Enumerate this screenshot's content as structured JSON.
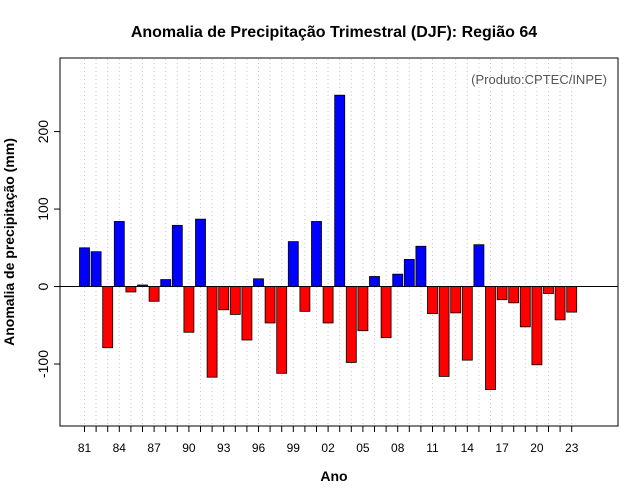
{
  "chart_data": {
    "type": "bar",
    "title": "Anomalia de Precipitação Trimestral (DJF): Região 64",
    "credit": "(Produto:CPTEC/INPE)",
    "xlabel": "Ano",
    "ylabel": "Anomalia de precipitação (mm)",
    "ylim": [
      -180,
      295
    ],
    "yticks": [
      -100,
      0,
      100,
      200
    ],
    "grid": "vertical dotted",
    "categories": [
      "81",
      "82",
      "83",
      "84",
      "85",
      "86",
      "87",
      "88",
      "89",
      "90",
      "91",
      "92",
      "93",
      "94",
      "95",
      "96",
      "97",
      "98",
      "99",
      "00",
      "01",
      "02",
      "03",
      "04",
      "05",
      "06",
      "07",
      "08",
      "09",
      "10",
      "11",
      "12",
      "13",
      "14",
      "15",
      "16",
      "17",
      "18",
      "19",
      "20",
      "21",
      "22",
      "23"
    ],
    "xtick_labels": [
      "81",
      "84",
      "87",
      "90",
      "93",
      "96",
      "99",
      "02",
      "05",
      "08",
      "11",
      "14",
      "17",
      "20",
      "23"
    ],
    "values": [
      50,
      45,
      -79,
      84,
      -7,
      2,
      -19,
      9,
      79,
      -59,
      87,
      -117,
      -30,
      -36,
      -69,
      10,
      -47,
      -112,
      58,
      -32,
      84,
      -47,
      247,
      -98,
      -57,
      13,
      -66,
      16,
      35,
      52,
      -35,
      -116,
      -34,
      -95,
      54,
      -133,
      -17,
      -21,
      -52,
      -101,
      -9,
      -43,
      -33
    ],
    "colors": {
      "positive": "#0000ff",
      "negative": "#ff0000",
      "outline": "#000000",
      "grid": "#c8c8c8"
    }
  }
}
